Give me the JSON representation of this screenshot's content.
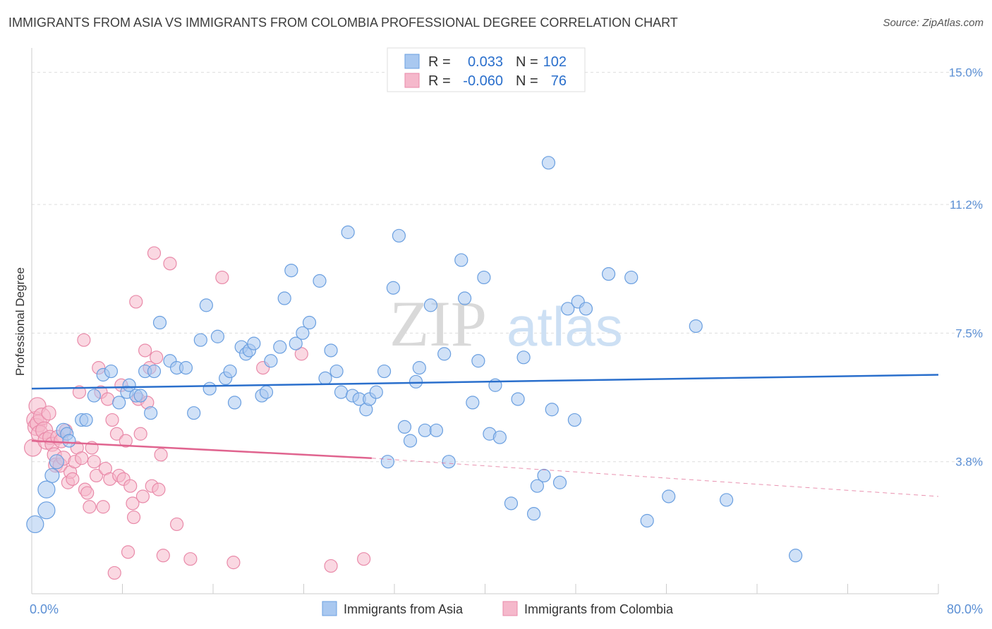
{
  "title": "IMMIGRANTS FROM ASIA VS IMMIGRANTS FROM COLOMBIA PROFESSIONAL DEGREE CORRELATION CHART",
  "source": "Source: ZipAtlas.com",
  "watermark": {
    "zip": "ZIP",
    "atlas": "atlas"
  },
  "colors": {
    "asia_fill": "#a9c8f0",
    "asia_stroke": "#6a9fe0",
    "asia_line": "#2a6fcc",
    "colombia_fill": "#f5b8cb",
    "colombia_stroke": "#e98aa9",
    "colombia_line": "#e0648f",
    "axis_label": "#5b8fd4",
    "grid": "#dddddd"
  },
  "legend": {
    "r_label": "R =",
    "n_label": "N =",
    "rows": [
      {
        "r": "0.033",
        "n": "102"
      },
      {
        "r": "-0.060",
        "n": "76"
      }
    ]
  },
  "chart_data": {
    "type": "scatter",
    "title": "IMMIGRANTS FROM ASIA VS IMMIGRANTS FROM COLOMBIA PROFESSIONAL DEGREE CORRELATION CHART",
    "xlabel": "",
    "ylabel": "Professional Degree",
    "xlim": [
      0,
      80
    ],
    "ylim": [
      0,
      15.5
    ],
    "x_tick_labels": [
      "0.0%",
      "80.0%"
    ],
    "y_ticks": [
      3.8,
      7.5,
      11.2,
      15.0
    ],
    "y_tick_labels": [
      "3.8%",
      "7.5%",
      "11.2%",
      "15.0%"
    ],
    "grid": true,
    "legend_position": "bottom",
    "series": [
      {
        "name": "Immigrants from Asia",
        "r": 0.033,
        "n": 102,
        "trend": {
          "x": [
            0,
            80
          ],
          "y": [
            5.9,
            6.3
          ]
        },
        "points": [
          [
            0.3,
            2.0
          ],
          [
            1.3,
            2.4
          ],
          [
            1.3,
            3.0
          ],
          [
            1.8,
            3.4
          ],
          [
            2.2,
            3.8
          ],
          [
            2.8,
            4.7
          ],
          [
            3.1,
            4.6
          ],
          [
            3.3,
            4.4
          ],
          [
            4.4,
            5.0
          ],
          [
            4.8,
            5.0
          ],
          [
            5.5,
            5.7
          ],
          [
            6.3,
            6.3
          ],
          [
            7.0,
            6.4
          ],
          [
            7.7,
            5.5
          ],
          [
            8.4,
            5.8
          ],
          [
            8.6,
            6.0
          ],
          [
            9.2,
            5.7
          ],
          [
            9.6,
            5.7
          ],
          [
            10.0,
            6.4
          ],
          [
            10.5,
            5.2
          ],
          [
            10.8,
            6.4
          ],
          [
            11.3,
            7.8
          ],
          [
            12.2,
            6.7
          ],
          [
            12.8,
            6.5
          ],
          [
            13.6,
            6.5
          ],
          [
            14.3,
            5.2
          ],
          [
            14.9,
            7.3
          ],
          [
            15.4,
            8.3
          ],
          [
            15.7,
            5.9
          ],
          [
            16.4,
            7.4
          ],
          [
            17.1,
            6.2
          ],
          [
            17.5,
            6.4
          ],
          [
            17.9,
            5.5
          ],
          [
            18.5,
            7.1
          ],
          [
            18.9,
            6.9
          ],
          [
            19.2,
            7.0
          ],
          [
            19.6,
            7.2
          ],
          [
            20.3,
            5.7
          ],
          [
            20.7,
            5.8
          ],
          [
            21.1,
            6.7
          ],
          [
            21.9,
            7.1
          ],
          [
            22.3,
            8.5
          ],
          [
            22.9,
            9.3
          ],
          [
            23.3,
            7.2
          ],
          [
            23.9,
            7.5
          ],
          [
            24.5,
            7.8
          ],
          [
            25.4,
            9.0
          ],
          [
            25.9,
            6.2
          ],
          [
            26.4,
            7.0
          ],
          [
            26.9,
            6.4
          ],
          [
            27.3,
            5.8
          ],
          [
            27.9,
            10.4
          ],
          [
            28.3,
            5.7
          ],
          [
            28.9,
            5.6
          ],
          [
            29.5,
            5.3
          ],
          [
            29.8,
            5.6
          ],
          [
            30.4,
            5.8
          ],
          [
            31.1,
            6.4
          ],
          [
            31.4,
            3.8
          ],
          [
            31.9,
            8.8
          ],
          [
            32.4,
            10.3
          ],
          [
            32.9,
            4.8
          ],
          [
            33.4,
            4.4
          ],
          [
            33.9,
            6.1
          ],
          [
            34.2,
            6.5
          ],
          [
            34.7,
            4.7
          ],
          [
            35.2,
            8.3
          ],
          [
            35.7,
            4.7
          ],
          [
            36.4,
            6.9
          ],
          [
            36.8,
            3.8
          ],
          [
            37.9,
            9.6
          ],
          [
            38.2,
            8.5
          ],
          [
            38.9,
            5.5
          ],
          [
            39.4,
            6.7
          ],
          [
            39.9,
            9.1
          ],
          [
            40.4,
            4.6
          ],
          [
            40.9,
            6.0
          ],
          [
            41.3,
            4.5
          ],
          [
            42.3,
            2.6
          ],
          [
            42.9,
            5.6
          ],
          [
            43.4,
            6.8
          ],
          [
            44.3,
            2.3
          ],
          [
            44.6,
            3.1
          ],
          [
            45.2,
            3.4
          ],
          [
            45.6,
            12.4
          ],
          [
            45.9,
            5.3
          ],
          [
            46.6,
            3.2
          ],
          [
            47.3,
            8.2
          ],
          [
            47.9,
            5.0
          ],
          [
            48.2,
            8.4
          ],
          [
            48.9,
            8.2
          ],
          [
            50.9,
            9.2
          ],
          [
            52.9,
            9.1
          ],
          [
            54.3,
            2.1
          ],
          [
            56.2,
            2.8
          ],
          [
            58.6,
            7.7
          ],
          [
            61.3,
            2.7
          ],
          [
            67.4,
            1.1
          ]
        ]
      },
      {
        "name": "Immigrants from Colombia",
        "r": -0.06,
        "n": 76,
        "trend": {
          "x": [
            0,
            30
          ],
          "y": [
            4.4,
            3.9
          ]
        },
        "trend_dashed": {
          "x": [
            30,
            80
          ],
          "y": [
            3.9,
            2.8
          ]
        },
        "points": [
          [
            0.1,
            4.2
          ],
          [
            0.3,
            5.0
          ],
          [
            0.4,
            4.8
          ],
          [
            0.5,
            5.4
          ],
          [
            0.6,
            4.9
          ],
          [
            0.7,
            4.6
          ],
          [
            0.9,
            5.1
          ],
          [
            1.1,
            4.7
          ],
          [
            1.3,
            4.4
          ],
          [
            1.5,
            5.2
          ],
          [
            1.6,
            4.5
          ],
          [
            1.8,
            4.3
          ],
          [
            2.0,
            4.0
          ],
          [
            2.1,
            3.7
          ],
          [
            2.3,
            4.5
          ],
          [
            2.5,
            3.7
          ],
          [
            2.6,
            4.4
          ],
          [
            2.8,
            3.9
          ],
          [
            3.0,
            4.7
          ],
          [
            3.2,
            3.2
          ],
          [
            3.4,
            3.5
          ],
          [
            3.6,
            3.3
          ],
          [
            3.8,
            3.8
          ],
          [
            4.0,
            4.2
          ],
          [
            4.2,
            5.8
          ],
          [
            4.4,
            3.9
          ],
          [
            4.6,
            7.3
          ],
          [
            4.7,
            3.0
          ],
          [
            4.9,
            2.9
          ],
          [
            5.1,
            2.5
          ],
          [
            5.3,
            4.2
          ],
          [
            5.5,
            3.8
          ],
          [
            5.7,
            3.4
          ],
          [
            5.9,
            6.5
          ],
          [
            6.1,
            5.8
          ],
          [
            6.3,
            2.5
          ],
          [
            6.5,
            3.6
          ],
          [
            6.7,
            5.6
          ],
          [
            6.9,
            3.3
          ],
          [
            7.1,
            5.0
          ],
          [
            7.3,
            0.6
          ],
          [
            7.5,
            4.6
          ],
          [
            7.7,
            3.4
          ],
          [
            7.9,
            6.0
          ],
          [
            8.1,
            3.3
          ],
          [
            8.3,
            4.4
          ],
          [
            8.5,
            1.2
          ],
          [
            8.7,
            3.1
          ],
          [
            8.9,
            2.6
          ],
          [
            9.0,
            2.2
          ],
          [
            9.2,
            8.4
          ],
          [
            9.4,
            5.6
          ],
          [
            9.6,
            4.6
          ],
          [
            9.8,
            2.8
          ],
          [
            10.0,
            7.0
          ],
          [
            10.2,
            5.5
          ],
          [
            10.4,
            6.5
          ],
          [
            10.6,
            3.1
          ],
          [
            10.8,
            9.8
          ],
          [
            11.0,
            6.8
          ],
          [
            11.2,
            3.0
          ],
          [
            11.4,
            4.0
          ],
          [
            11.6,
            1.1
          ],
          [
            12.2,
            9.5
          ],
          [
            12.8,
            2.0
          ],
          [
            14.0,
            1.0
          ],
          [
            16.8,
            9.1
          ],
          [
            17.8,
            0.9
          ],
          [
            20.4,
            6.5
          ],
          [
            23.8,
            6.9
          ],
          [
            26.4,
            0.8
          ],
          [
            29.3,
            1.0
          ]
        ]
      }
    ]
  }
}
